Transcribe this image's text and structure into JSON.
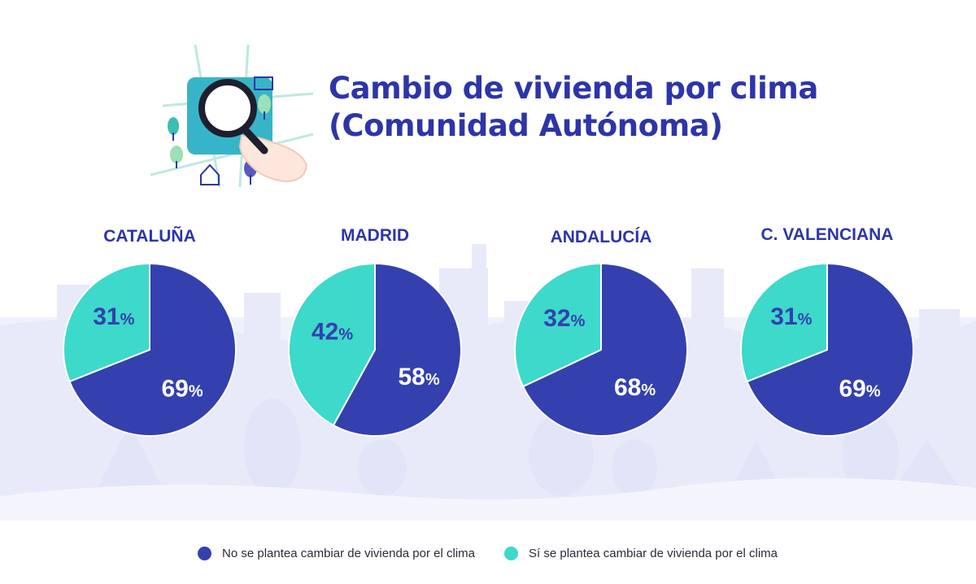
{
  "title": {
    "line1": "Cambio de vivienda por clima",
    "line2": "(Comunidad Autónoma)"
  },
  "colors": {
    "no": "#3340ae",
    "si": "#3dd9cb",
    "title": "#2d35a8",
    "background_scene": "#eef0fb"
  },
  "chart_data": {
    "type": "pie",
    "series_names": [
      "No se plantea cambiar de vivienda por el clima",
      "Sí se plantea cambiar de vivienda por el clima"
    ],
    "charts": [
      {
        "label": "CATALUÑA",
        "no": 69,
        "si": 31
      },
      {
        "label": "MADRID",
        "no": 58,
        "si": 42
      },
      {
        "label": "ANDALUCÍA",
        "no": 68,
        "si": 32
      },
      {
        "label": "C. VALENCIANA",
        "no": 69,
        "si": 31
      }
    ],
    "value_suffix": "%"
  },
  "legend": {
    "no_label": "No se plantea cambiar de vivienda por el clima",
    "si_label": "Sí se plantea cambiar de vivienda por el clima"
  },
  "icons": [
    "magnifying-glass-icon",
    "hand-icon",
    "map-icon",
    "tree-icon",
    "house-icon"
  ]
}
